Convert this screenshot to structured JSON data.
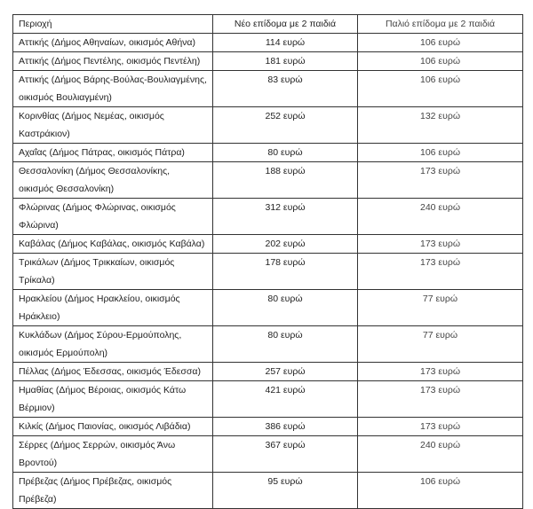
{
  "table": {
    "headers": [
      "Περιοχή",
      "Νέο επίδομα με 2 παιδιά",
      "Παλιό επίδομα με 2 παιδιά"
    ],
    "rows": [
      {
        "region": "Αττικής (Δήμος Αθηναίων, οικισμός Αθήνα)",
        "new": "114 ευρώ",
        "old": "106 ευρώ"
      },
      {
        "region": "Αττικής (Δήμος Πεντέλης, οικισμός Πεντέλη)",
        "new": "181 ευρώ",
        "old": "106 ευρώ"
      },
      {
        "region": "Αττικής (Δήμος Βάρης-Βούλας-Βουλιαγμένης, οικισμός Βουλιαγμένη)",
        "new": "83 ευρώ",
        "old": "106 ευρώ"
      },
      {
        "region": "Κορινθίας (Δήμος Νεμέας, οικισμός Καστράκιον)",
        "new": "252 ευρώ",
        "old": "132 ευρώ"
      },
      {
        "region": "Αχαΐας (Δήμος Πάτρας, οικισμός Πάτρα)",
        "new": "80 ευρώ",
        "old": "106 ευρώ"
      },
      {
        "region": "Θεσσαλονίκη (Δήμος Θεσσαλονίκης, οικισμός Θεσσαλονίκη)",
        "new": "188 ευρώ",
        "old": "173 ευρώ"
      },
      {
        "region": "Φλώρινας (Δήμος Φλώρινας, οικισμός Φλώρινα)",
        "new": "312 ευρώ",
        "old": "240 ευρώ"
      },
      {
        "region": "Καβάλας (Δήμος Καβάλας, οικισμός Καβάλα)",
        "new": "202 ευρώ",
        "old": "173 ευρώ"
      },
      {
        "region": "Τρικάλων (Δήμος Τρικκαίων, οικισμός Τρίκαλα)",
        "new": "178 ευρώ",
        "old": "173 ευρώ"
      },
      {
        "region": "Ηρακλείου (Δήμος Ηρακλείου, οικισμός Ηράκλειο)",
        "new": "80 ευρώ",
        "old": "77 ευρώ"
      },
      {
        "region": "Κυκλάδων (Δήμος Σύρου-Ερμούπολης, οικισμός Ερμούπολη)",
        "new": "80 ευρώ",
        "old": "77 ευρώ"
      },
      {
        "region": "Πέλλας (Δήμος Έδεσσας, οικισμός Έδεσσα)",
        "new": "257 ευρώ",
        "old": "173 ευρώ"
      },
      {
        "region": "Ημαθίας (Δήμος Βέροιας, οικισμός Κάτω Βέρμιον)",
        "new": "421 ευρώ",
        "old": "173 ευρώ"
      },
      {
        "region": "Κιλκίς (Δήμος Παιονίας, οικισμός Λιβάδια)",
        "new": "386 ευρώ",
        "old": "173 ευρώ"
      },
      {
        "region": "Σέρρες (Δήμος Σερρών, οικισμός Άνω Βροντού)",
        "new": "367 ευρώ",
        "old": "240 ευρώ"
      },
      {
        "region": "Πρέβεζας (Δήμος Πρέβεζας, οικισμός Πρέβεζα)",
        "new": "95 ευρώ",
        "old": "106 ευρώ"
      }
    ]
  }
}
